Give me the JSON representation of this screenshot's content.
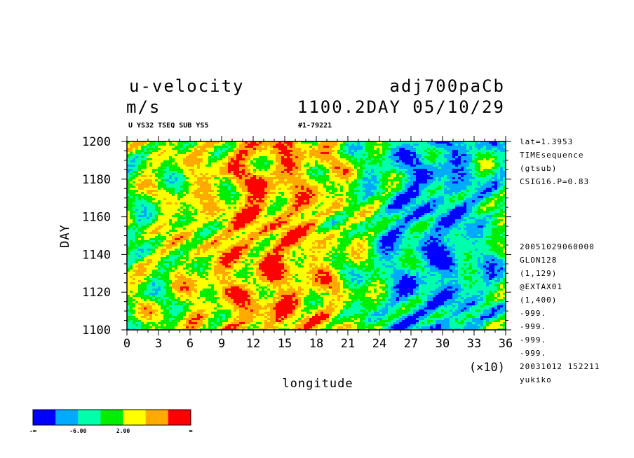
{
  "header": {
    "variable": "u-velocity",
    "units": "m/s",
    "run_name": "adj700paCb",
    "time_label": "1100.2DAY 05/10/29",
    "subtitle_left": "U YS32 TSEQ SUB YS5",
    "subtitle_right": "#1-79221"
  },
  "info_panel": {
    "top": [
      "lat=1.3953",
      "TIMEsequence",
      "(gtsub)",
      "CSIG16.P=0.83"
    ],
    "bottom": [
      "20051029060000",
      "GLON128",
      "(1,129)",
      "@EXTAX01",
      "(1,400)",
      "-999.",
      "-999.",
      "-999.",
      "-999.",
      "20031012 152211",
      "yukiko"
    ]
  },
  "chart_data": {
    "type": "heatmap",
    "xlabel": "longitude",
    "ylabel": "DAY",
    "x_multiplier": "(×10)",
    "xlim": [
      0,
      36
    ],
    "ylim": [
      1100,
      1200
    ],
    "x_ticks": [
      "0",
      "3",
      "6",
      "9",
      "12",
      "15",
      "18",
      "21",
      "24",
      "27",
      "30",
      "33",
      "36"
    ],
    "y_ticks": [
      "1100",
      "1120",
      "1140",
      "1160",
      "1180",
      "1200"
    ],
    "colorbar": {
      "colors": [
        "#0000ff",
        "#00aaff",
        "#00ffaa",
        "#00ee00",
        "#ffff00",
        "#ffaa00",
        "#ff0000"
      ],
      "labels": [
        "-∞",
        "-6.00",
        "2.00",
        "∞"
      ]
    }
  }
}
